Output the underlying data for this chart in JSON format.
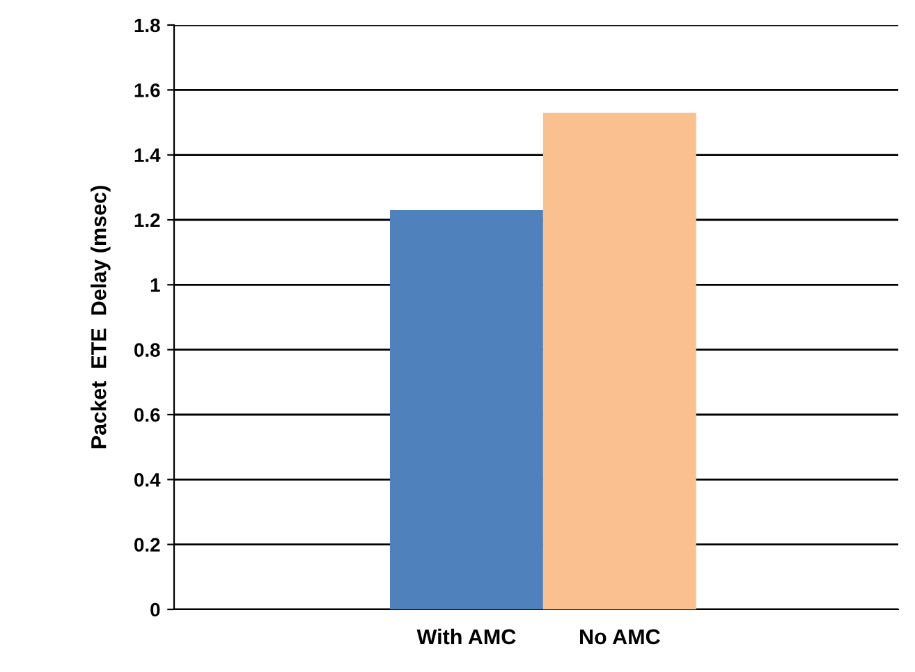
{
  "chart_data": {
    "type": "bar",
    "ylabel": "Packet  ETE  Delay (msec)",
    "categories": [
      "With AMC",
      "No AMC"
    ],
    "values": [
      1.23,
      1.53
    ],
    "colors": [
      "#4f81bd",
      "#fac090"
    ],
    "ylim": [
      0,
      1.8
    ],
    "yticks": [
      {
        "value": 0,
        "label": "0"
      },
      0.2,
      0.4,
      0.6,
      0.8,
      {
        "value": 1,
        "label": "1"
      },
      1.2,
      1.4,
      1.6,
      1.8
    ],
    "grid": "y"
  }
}
